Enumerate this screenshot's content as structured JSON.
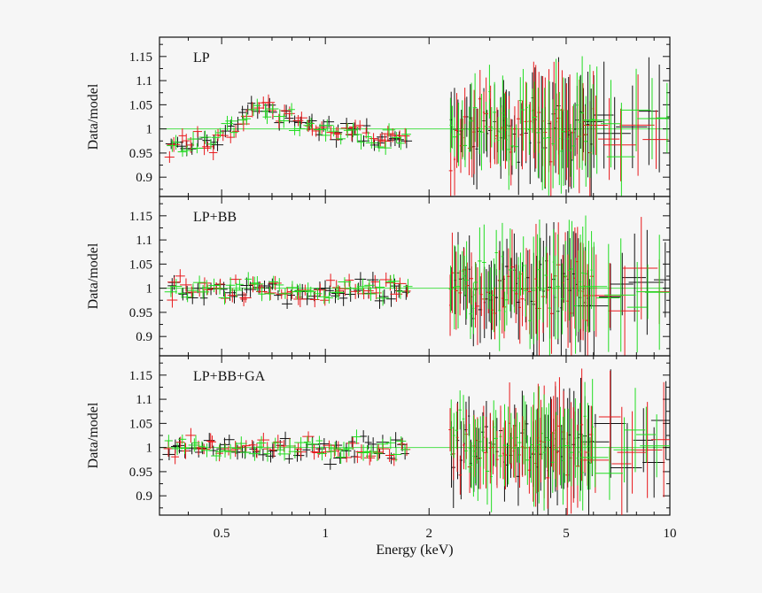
{
  "chart_data": {
    "type": "scatter",
    "xlabel": "Energy (keV)",
    "xscale": "log",
    "xlim": [
      0.33,
      10
    ],
    "ylim": [
      0.86,
      1.19
    ],
    "xticks": [
      {
        "value": 0.5,
        "label": "0.5"
      },
      {
        "value": 1,
        "label": "1"
      },
      {
        "value": 2,
        "label": "2"
      },
      {
        "value": 5,
        "label": "5"
      },
      {
        "value": 10,
        "label": "10"
      }
    ],
    "ylabel": "Data/model",
    "yticks": [
      {
        "value": 0.9,
        "label": "0.9"
      },
      {
        "value": 0.95,
        "label": "0.95"
      },
      {
        "value": 1,
        "label": "1"
      },
      {
        "value": 1.05,
        "label": "1.05"
      },
      {
        "value": 1.1,
        "label": "1.1"
      },
      {
        "value": 1.15,
        "label": "1.15"
      }
    ],
    "reference_line": 1,
    "series_colors": {
      "pn": "#111111",
      "mos1": "#e8191c",
      "mos2": "#22dd22"
    },
    "panels": [
      {
        "title": "LP",
        "soft_segments": [
          {
            "from": 0.35,
            "to": 0.47,
            "y0": 0.955,
            "y1": 0.978
          },
          {
            "from": 0.47,
            "to": 0.54,
            "y0": 0.978,
            "y1": 1.0
          },
          {
            "from": 0.54,
            "to": 0.62,
            "y0": 1.0,
            "y1": 1.05
          },
          {
            "from": 0.62,
            "to": 0.75,
            "y0": 1.05,
            "y1": 1.03
          },
          {
            "from": 0.75,
            "to": 1.0,
            "y0": 1.03,
            "y1": 1.0
          },
          {
            "from": 1.0,
            "to": 1.75,
            "y0": 1.0,
            "y1": 0.97
          }
        ],
        "hard_trend": 1.0
      },
      {
        "title": "LP+BB",
        "soft_segments": [
          {
            "from": 0.35,
            "to": 0.6,
            "y0": 1.0,
            "y1": 0.995
          },
          {
            "from": 0.6,
            "to": 1.0,
            "y0": 1.0,
            "y1": 0.99
          },
          {
            "from": 1.0,
            "to": 1.75,
            "y0": 0.995,
            "y1": 1.0
          }
        ],
        "hard_trend": 1.0
      },
      {
        "title": "LP+BB+GA",
        "soft_segments": [
          {
            "from": 0.35,
            "to": 0.6,
            "y0": 1.0,
            "y1": 1.0
          },
          {
            "from": 0.6,
            "to": 1.0,
            "y0": 1.0,
            "y1": 0.995
          },
          {
            "from": 1.0,
            "to": 1.75,
            "y0": 0.995,
            "y1": 1.0
          }
        ],
        "hard_trend": 1.0
      }
    ],
    "soft_band_keV": [
      0.35,
      1.75
    ],
    "hard_band_keV": [
      2.3,
      10
    ],
    "soft_scatter": 0.012,
    "hard_scatter": 0.03,
    "soft_error": 0.012,
    "hard_error": 0.055
  }
}
